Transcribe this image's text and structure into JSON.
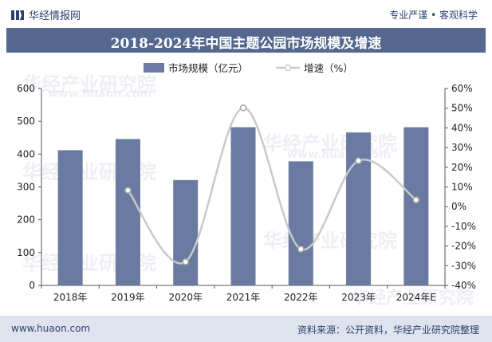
{
  "header": {
    "brand": "华经情报网",
    "slogan": "专业严谨 • 客观科学"
  },
  "title": "2018-2024年中国主题公园市场规模及增速",
  "footer": {
    "site": "www.huaon.com",
    "source": "资料来源：公开资料，华经产业研究院整理"
  },
  "watermark": {
    "cn": "华经产业研究院",
    "en": "www.huaon.com"
  },
  "colors": {
    "bar": "#6a7aa0",
    "line": "#c9c9c9",
    "title_bg": "#55678f",
    "footer_bg": "#dfe3ee"
  },
  "chart_data": {
    "type": "bar",
    "categories": [
      "2018年",
      "2019年",
      "2020年",
      "2021年",
      "2022年",
      "2023年",
      "2024年E"
    ],
    "series": [
      {
        "name": "市场规模（亿元）",
        "type": "bar",
        "axis": "left",
        "values": [
          412,
          446,
          321,
          482,
          378,
          466,
          482
        ]
      },
      {
        "name": "增速（%）",
        "type": "line",
        "axis": "right",
        "values": [
          null,
          8.3,
          -28.0,
          50.2,
          -21.6,
          23.3,
          3.4
        ]
      }
    ],
    "y_left": {
      "min": 0,
      "max": 600,
      "ticks": [
        "0",
        "100",
        "200",
        "300",
        "400",
        "500",
        "600"
      ]
    },
    "y_right": {
      "min": -40,
      "max": 60,
      "ticks": [
        "-40%",
        "-30%",
        "-20%",
        "-10%",
        "0%",
        "10%",
        "20%",
        "30%",
        "40%",
        "50%",
        "60%"
      ]
    },
    "legend_position": "top",
    "grid": false
  }
}
